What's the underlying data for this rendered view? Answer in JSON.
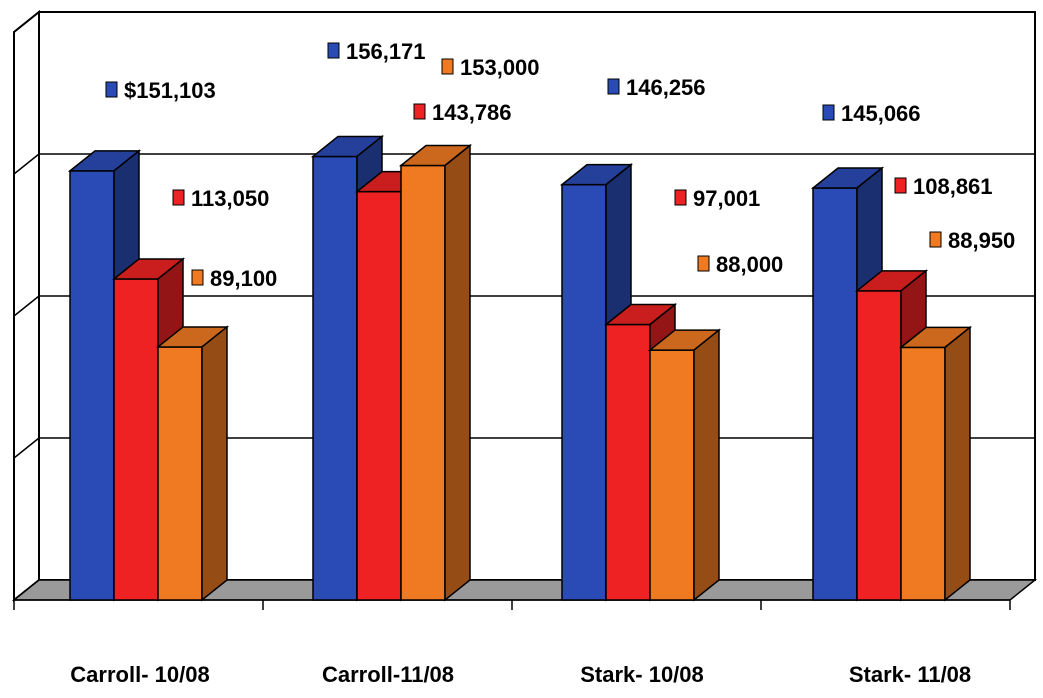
{
  "chart_data": {
    "type": "bar",
    "categories": [
      "Carroll- 10/08",
      "Carroll-11/08",
      "Stark- 10/08",
      "Stark- 11/08"
    ],
    "series": [
      {
        "color": "#2a4bb5",
        "values": [
          151103,
          156171,
          146256,
          145066
        ],
        "labels": [
          "$151,103",
          "156,171",
          "146,256",
          "145,066"
        ]
      },
      {
        "color": "#ee2222",
        "values": [
          113050,
          143786,
          97001,
          108861
        ],
        "labels": [
          "113,050",
          "143,786",
          "97,001",
          "108,861"
        ]
      },
      {
        "color": "#f07a22",
        "values": [
          89100,
          153000,
          88000,
          88950
        ],
        "labels": [
          "89,100",
          "153,000",
          "88,000",
          "88,950"
        ]
      }
    ],
    "ylim": [
      0,
      200000
    ],
    "grid": true,
    "style": "3d-column"
  }
}
